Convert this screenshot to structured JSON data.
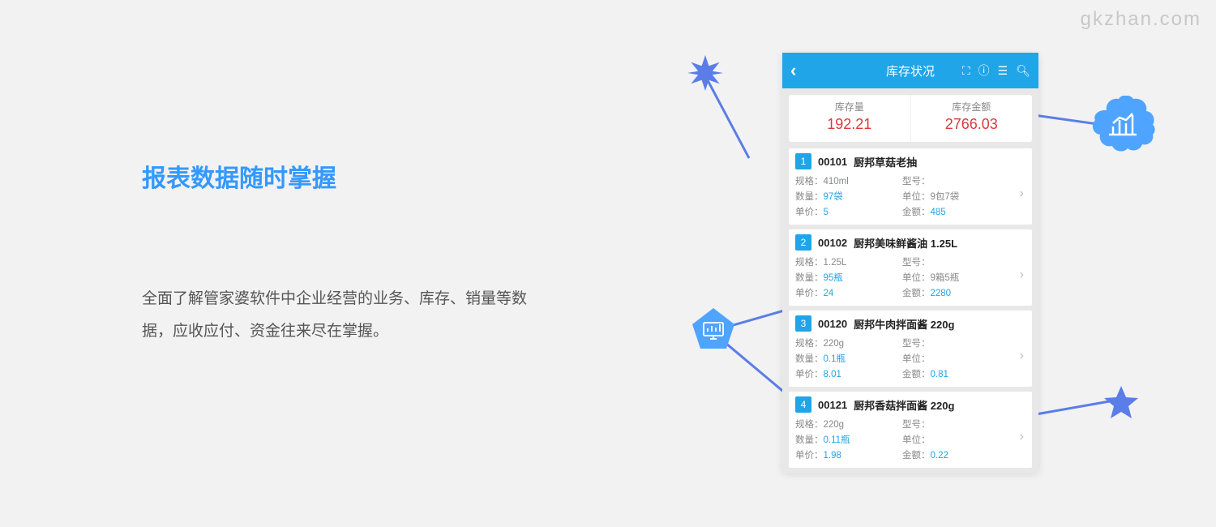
{
  "watermark": "gkzhan.com",
  "headline": "报表数据随时掌握",
  "description": "全面了解管家婆软件中企业经营的业务、库存、销量等数据，应收应付、资金往来尽在掌握。",
  "colors": {
    "accent": "#1fa5e8",
    "headline": "#3399ff",
    "value_red": "#d93a3a",
    "shape_blue": "#5b7de8",
    "bg": "#f2f2f2"
  },
  "phone": {
    "title": "库存状况",
    "summary": [
      {
        "label": "库存量",
        "value": "192.21"
      },
      {
        "label": "库存金额",
        "value": "2766.03"
      }
    ],
    "items": [
      {
        "num": "1",
        "code": "00101",
        "name": "厨邦草菇老抽",
        "spec": "410ml",
        "model": "",
        "qty": "97袋",
        "unit": "9包7袋",
        "price": "5",
        "amount": "485"
      },
      {
        "num": "2",
        "code": "00102",
        "name": "厨邦美味鲜酱油 1.25L",
        "spec": "1.25L",
        "model": "",
        "qty": "95瓶",
        "unit": "9箱5瓶",
        "price": "24",
        "amount": "2280"
      },
      {
        "num": "3",
        "code": "00120",
        "name": "厨邦牛肉拌面酱 220g",
        "spec": "220g",
        "model": "",
        "qty": "0.1瓶",
        "unit": "",
        "price": "8.01",
        "amount": "0.81"
      },
      {
        "num": "4",
        "code": "00121",
        "name": "厨邦香菇拌面酱 220g",
        "spec": "220g",
        "model": "",
        "qty": "0.11瓶",
        "unit": "",
        "price": "1.98",
        "amount": "0.22"
      }
    ],
    "labels": {
      "spec": "规格：",
      "model": "型号：",
      "qty": "数量：",
      "unit": "单位：",
      "price": "单价：",
      "amount": "金额："
    }
  }
}
